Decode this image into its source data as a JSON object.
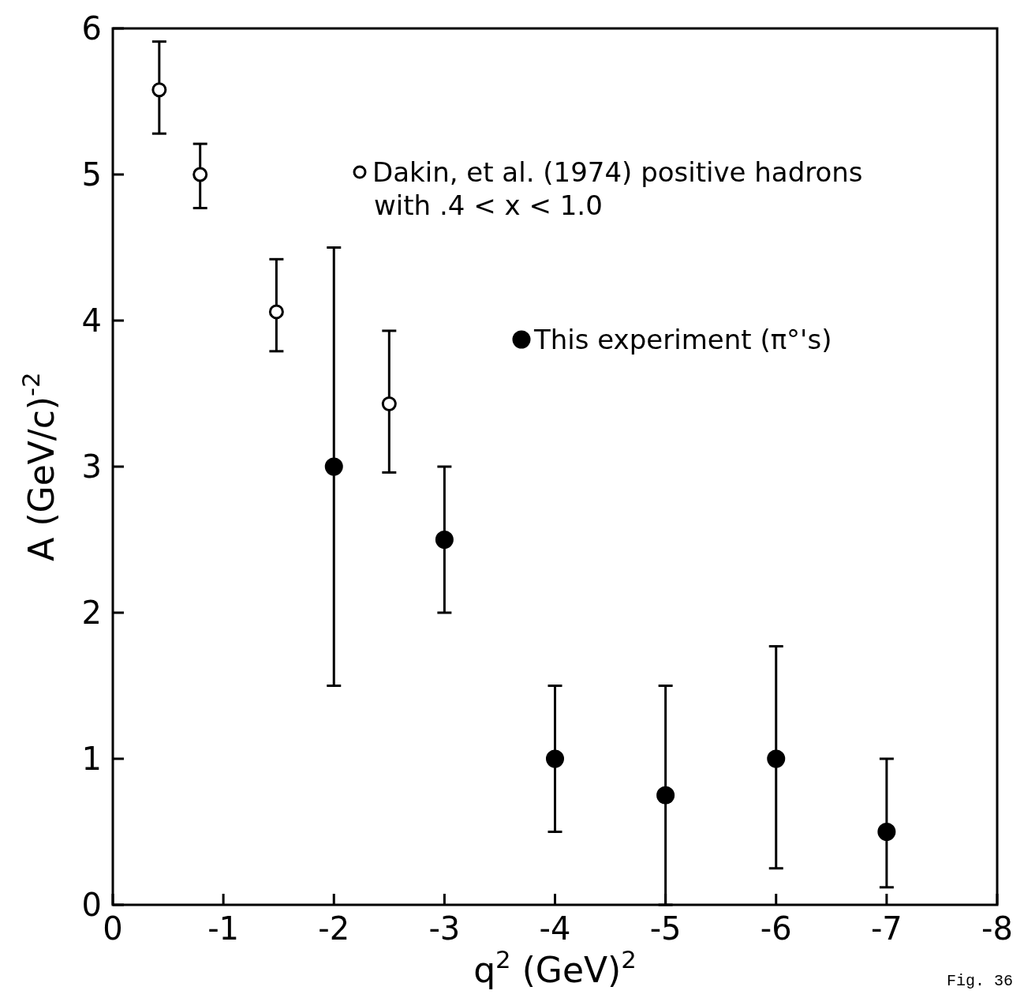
{
  "chart_data": {
    "type": "scatter",
    "xlabel": "q$^{2}$ (GeV)$^{2}$",
    "ylabel": "A (GeV/c)$^{-2}$",
    "xlim": [
      0,
      -8
    ],
    "xticks": [
      0,
      -1,
      -2,
      -3,
      -4,
      -5,
      -6,
      -7,
      -8
    ],
    "ylim": [
      0,
      6
    ],
    "yticks": [
      0,
      1,
      2,
      3,
      4,
      5,
      6
    ],
    "legend": "top right",
    "marker": "circle",
    "series": [
      {
        "name": "Dakin, et al. (1974) positive hadrons with .4 < x < 1.0",
        "color": "#ffffff",
        "x": [
          -0.42,
          -0.79,
          -1.48,
          -2.5
        ],
        "values": [
          5.58,
          5.0,
          4.06,
          3.43
        ],
        "errors": [
          [
            5.28,
            5.91
          ],
          [
            4.77,
            5.21
          ],
          [
            3.79,
            4.42
          ],
          [
            2.96,
            3.93
          ]
        ]
      },
      {
        "name": "This experiment (π°'s)",
        "color": "#000000",
        "x": [
          -2,
          -3,
          -4,
          -5,
          -6,
          -7
        ],
        "values": [
          3.0,
          2.5,
          1.0,
          0.75,
          1.0,
          0.5
        ],
        "errors": [
          [
            1.5,
            4.5
          ],
          [
            2.0,
            3.0
          ],
          [
            0.5,
            1.5
          ],
          [
            0,
            1.5
          ],
          [
            0.25,
            1.77
          ],
          [
            0.12,
            1.0
          ]
        ]
      }
    ],
    "annotations": [
      "Fig. 36"
    ]
  }
}
